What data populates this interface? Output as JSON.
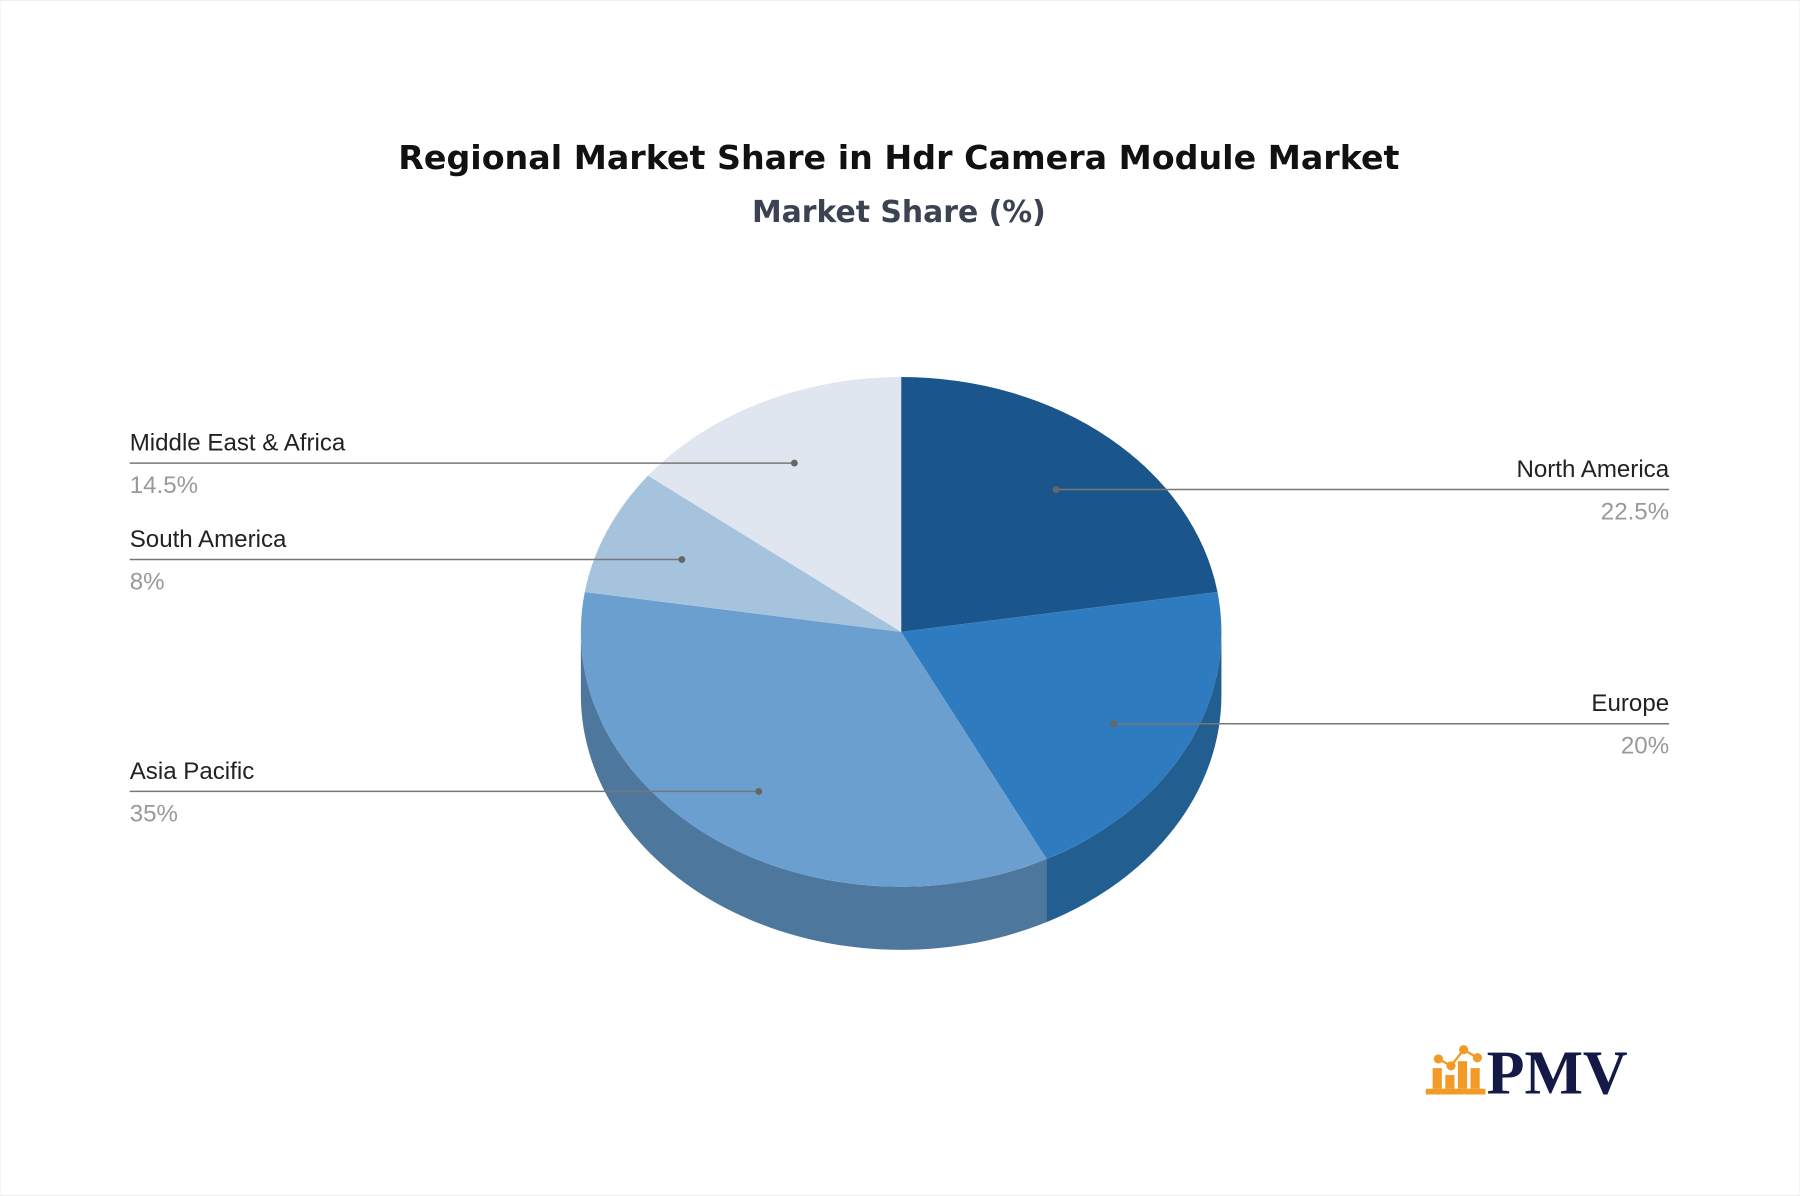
{
  "chart_data": {
    "type": "pie",
    "style": "3d",
    "title": "Regional Market Share in Hdr Camera Module Market",
    "subtitle": "Market Share (%)",
    "slices": [
      {
        "label": "North America",
        "value": 22.5,
        "display": "22.5%",
        "color": "#1a568c",
        "side_color": "#143f68",
        "side": "right"
      },
      {
        "label": "Europe",
        "value": 20,
        "display": "20%",
        "color": "#2e7bc0",
        "side_color": "#235e91",
        "side": "right"
      },
      {
        "label": "Asia Pacific",
        "value": 35,
        "display": "35%",
        "color": "#6a9fd0",
        "side_color": "#4d779d",
        "side": "left"
      },
      {
        "label": "South America",
        "value": 8,
        "display": "8%",
        "color": "#a6c3de",
        "side_color": "#7f9ab3",
        "side": "left"
      },
      {
        "label": "Middle East & Africa",
        "value": 14.5,
        "display": "14.5%",
        "color": "#dfe6ef",
        "side_color": "#b0b8c2",
        "side": "left"
      }
    ]
  },
  "logo": {
    "text": "PMV",
    "icon": "bar-chart-icon",
    "icon_color": "#f39a26",
    "text_color": "#141a45"
  }
}
